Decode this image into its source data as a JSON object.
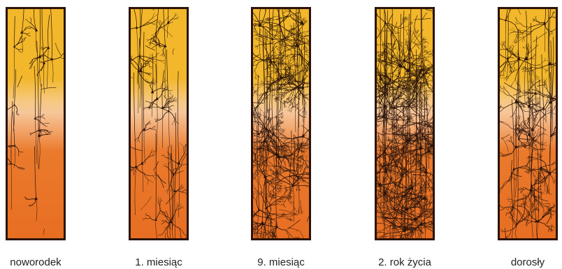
{
  "stages": [
    {
      "label": "noworodek",
      "density": 1
    },
    {
      "label": "1. miesiąc",
      "density": 2
    },
    {
      "label": "9. miesiąc",
      "density": 4
    },
    {
      "label": "2. rok życia",
      "density": 5
    },
    {
      "label": "dorosły",
      "density": 3
    }
  ],
  "colors": {
    "top": "#f2b72a",
    "mid": "#f6c79a",
    "bottom": "#e86e22",
    "neuron": "#2a140c"
  }
}
